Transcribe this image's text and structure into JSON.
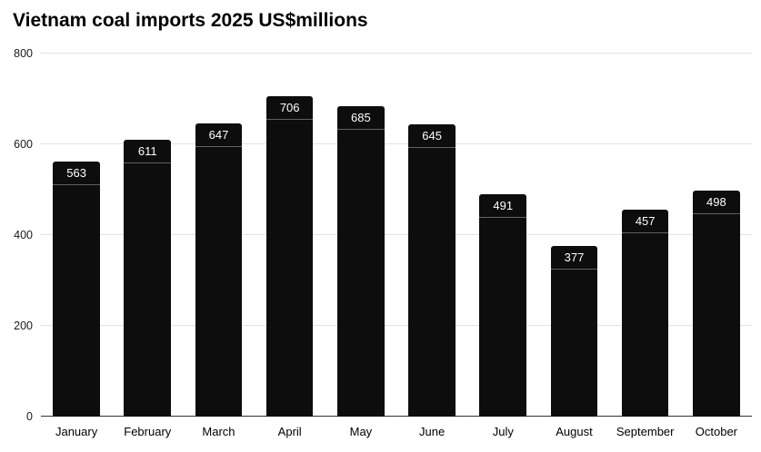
{
  "chart_data": {
    "type": "bar",
    "title": "Vietnam coal imports 2025 US$millions",
    "categories": [
      "January",
      "February",
      "March",
      "April",
      "May",
      "June",
      "July",
      "August",
      "September",
      "October"
    ],
    "values": [
      563,
      611,
      647,
      706,
      685,
      645,
      491,
      377,
      457,
      498
    ],
    "xlabel": "",
    "ylabel": "",
    "ylim": [
      0,
      800
    ],
    "yticks": [
      0,
      200,
      400,
      600,
      800
    ],
    "grid": true,
    "legend_position": "none",
    "bar_color": "#0d0d0d",
    "value_label_color": "#ffffff",
    "gridline_color": "#e3e3e3",
    "axis_line_color": "#333333"
  }
}
